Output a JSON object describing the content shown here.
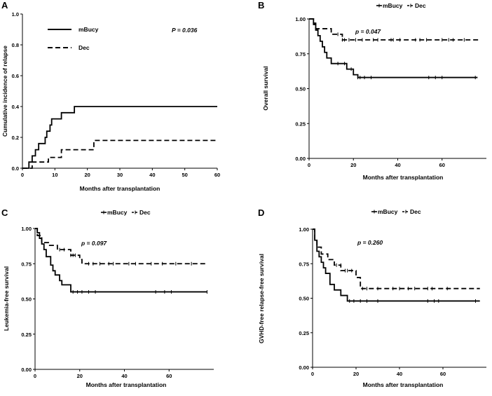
{
  "chart_data": [
    {
      "type": "line",
      "panel": "A",
      "annotation": "P = 0.036",
      "xlabel": "Months after transplantation",
      "ylabel": "Cumulative incidence of relapse",
      "xlim": [
        0,
        60
      ],
      "ylim": [
        0,
        1.0
      ],
      "xticks": [
        "0",
        "10",
        "20",
        "30",
        "40",
        "50",
        "60"
      ],
      "yticks": [
        "0.0",
        "0.2",
        "0.4",
        "0.6",
        "0.8",
        "1.0"
      ],
      "legend_placement": "top-left",
      "series": [
        {
          "name": "mBucy",
          "dash": "solid",
          "censors": [],
          "steps": [
            [
              0,
              0
            ],
            [
              2,
              0.04
            ],
            [
              3,
              0.08
            ],
            [
              4,
              0.12
            ],
            [
              5,
              0.16
            ],
            [
              7,
              0.2
            ],
            [
              7.5,
              0.24
            ],
            [
              8.5,
              0.28
            ],
            [
              9,
              0.32
            ],
            [
              12,
              0.36
            ],
            [
              16,
              0.4
            ],
            [
              60,
              0.4
            ]
          ]
        },
        {
          "name": "Dec",
          "dash": "dashed",
          "censors": [],
          "steps": [
            [
              0,
              0
            ],
            [
              3,
              0.04
            ],
            [
              8,
              0.07
            ],
            [
              12,
              0.12
            ],
            [
              22,
              0.18
            ],
            [
              60,
              0.18
            ]
          ]
        }
      ]
    },
    {
      "type": "line",
      "panel": "B",
      "annotation": "p = 0.047",
      "xlabel": "Months after transplantation",
      "ylabel": "Overall survival",
      "xlim": [
        0,
        80
      ],
      "ylim": [
        0,
        1.0
      ],
      "xticks": [
        "0",
        "20",
        "40",
        "60"
      ],
      "yticks": [
        "0.00",
        "0.25",
        "0.50",
        "0.75",
        "1.00"
      ],
      "legend_placement": "top",
      "legend_items": [
        "mBucy",
        "Dec"
      ],
      "series": [
        {
          "name": "mBucy",
          "dash": "solid",
          "steps": [
            [
              0,
              1.0
            ],
            [
              2,
              0.96
            ],
            [
              3,
              0.92
            ],
            [
              4,
              0.88
            ],
            [
              5,
              0.84
            ],
            [
              6,
              0.8
            ],
            [
              7,
              0.76
            ],
            [
              8,
              0.72
            ],
            [
              10,
              0.68
            ],
            [
              17,
              0.64
            ],
            [
              20,
              0.6
            ],
            [
              22,
              0.58
            ],
            [
              76,
              0.58
            ]
          ],
          "censors": [
            [
              13,
              0.68
            ],
            [
              16,
              0.68
            ],
            [
              19,
              0.64
            ],
            [
              22,
              0.58
            ],
            [
              23,
              0.58
            ],
            [
              25,
              0.58
            ],
            [
              28,
              0.58
            ],
            [
              54,
              0.58
            ],
            [
              57,
              0.58
            ],
            [
              60,
              0.58
            ],
            [
              75,
              0.58
            ]
          ]
        },
        {
          "name": "Dec",
          "dash": "dashed",
          "steps": [
            [
              0,
              1.0
            ],
            [
              2,
              0.97
            ],
            [
              3,
              0.93
            ],
            [
              10,
              0.89
            ],
            [
              15,
              0.85
            ],
            [
              77,
              0.85
            ]
          ],
          "censors": [
            [
              13,
              0.89
            ],
            [
              15,
              0.85
            ],
            [
              16,
              0.85
            ],
            [
              18,
              0.85
            ],
            [
              21,
              0.85
            ],
            [
              24,
              0.85
            ],
            [
              29,
              0.85
            ],
            [
              31,
              0.85
            ],
            [
              37,
              0.85
            ],
            [
              38,
              0.85
            ],
            [
              41,
              0.85
            ],
            [
              48,
              0.85
            ],
            [
              50,
              0.85
            ],
            [
              53,
              0.85
            ],
            [
              60,
              0.85
            ],
            [
              63,
              0.85
            ],
            [
              65,
              0.85
            ],
            [
              70,
              0.85
            ]
          ]
        }
      ]
    },
    {
      "type": "line",
      "panel": "C",
      "annotation": "p = 0.097",
      "xlabel": "Months after transplantation",
      "ylabel": "Leukemia-free survival",
      "xlim": [
        0,
        80
      ],
      "ylim": [
        0,
        1.0
      ],
      "xticks": [
        "0",
        "20",
        "40",
        "60"
      ],
      "yticks": [
        "0.00",
        "0.25",
        "0.50",
        "0.75",
        "1.00"
      ],
      "legend_placement": "top",
      "legend_items": [
        "mBucy",
        "Dec"
      ],
      "series": [
        {
          "name": "mBucy",
          "dash": "solid",
          "steps": [
            [
              0,
              1.0
            ],
            [
              1,
              0.97
            ],
            [
              2,
              0.93
            ],
            [
              3,
              0.89
            ],
            [
              4,
              0.85
            ],
            [
              5,
              0.8
            ],
            [
              7,
              0.74
            ],
            [
              8,
              0.7
            ],
            [
              9,
              0.67
            ],
            [
              11,
              0.63
            ],
            [
              12,
              0.6
            ],
            [
              16,
              0.55
            ],
            [
              77,
              0.55
            ]
          ],
          "censors": [
            [
              17,
              0.55
            ],
            [
              19,
              0.55
            ],
            [
              21,
              0.55
            ],
            [
              24,
              0.55
            ],
            [
              27,
              0.55
            ],
            [
              54,
              0.55
            ],
            [
              58,
              0.55
            ],
            [
              61,
              0.55
            ],
            [
              77,
              0.55
            ]
          ]
        },
        {
          "name": "Dec",
          "dash": "dashed",
          "steps": [
            [
              0,
              1.0
            ],
            [
              1,
              0.95
            ],
            [
              3,
              0.9
            ],
            [
              6,
              0.88
            ],
            [
              10,
              0.85
            ],
            [
              16,
              0.81
            ],
            [
              20,
              0.78
            ],
            [
              21,
              0.75
            ],
            [
              77,
              0.75
            ]
          ],
          "censors": [
            [
              11,
              0.85
            ],
            [
              13,
              0.85
            ],
            [
              16,
              0.81
            ],
            [
              17,
              0.81
            ],
            [
              18,
              0.81
            ],
            [
              24,
              0.75
            ],
            [
              26,
              0.75
            ],
            [
              29,
              0.75
            ],
            [
              33,
              0.75
            ],
            [
              35,
              0.75
            ],
            [
              42,
              0.75
            ],
            [
              45,
              0.75
            ],
            [
              52,
              0.75
            ],
            [
              57,
              0.75
            ],
            [
              63,
              0.75
            ],
            [
              70,
              0.75
            ]
          ]
        }
      ]
    },
    {
      "type": "line",
      "panel": "D",
      "annotation": "p = 0.260",
      "xlabel": "Months after transplantation",
      "ylabel": "GVHD-free relapse-free survival",
      "xlim": [
        0,
        80
      ],
      "ylim": [
        0,
        1.0
      ],
      "xticks": [
        "0",
        "20",
        "40",
        "60"
      ],
      "yticks": [
        "0.00",
        "0.25",
        "0.50",
        "0.75",
        "1.00"
      ],
      "legend_placement": "top",
      "legend_items": [
        "mBucy",
        "Dec"
      ],
      "series": [
        {
          "name": "mBucy",
          "dash": "solid",
          "steps": [
            [
              0,
              1.0
            ],
            [
              1,
              0.92
            ],
            [
              2,
              0.84
            ],
            [
              3,
              0.8
            ],
            [
              4,
              0.76
            ],
            [
              5,
              0.72
            ],
            [
              6,
              0.68
            ],
            [
              8,
              0.6
            ],
            [
              10,
              0.56
            ],
            [
              13,
              0.52
            ],
            [
              16,
              0.48
            ],
            [
              77,
              0.48
            ]
          ],
          "censors": [
            [
              17,
              0.48
            ],
            [
              19,
              0.48
            ],
            [
              22,
              0.48
            ],
            [
              25,
              0.48
            ],
            [
              30,
              0.48
            ],
            [
              53,
              0.48
            ],
            [
              56,
              0.48
            ],
            [
              58,
              0.48
            ],
            [
              75,
              0.48
            ]
          ]
        },
        {
          "name": "Dec",
          "dash": "dashed",
          "steps": [
            [
              0,
              1.0
            ],
            [
              1,
              0.92
            ],
            [
              2,
              0.87
            ],
            [
              4,
              0.82
            ],
            [
              7,
              0.78
            ],
            [
              10,
              0.74
            ],
            [
              13,
              0.7
            ],
            [
              20,
              0.65
            ],
            [
              22,
              0.57
            ],
            [
              77,
              0.57
            ]
          ],
          "censors": [
            [
              11,
              0.74
            ],
            [
              13,
              0.74
            ],
            [
              15,
              0.7
            ],
            [
              16,
              0.7
            ],
            [
              18,
              0.7
            ],
            [
              23,
              0.57
            ],
            [
              25,
              0.57
            ],
            [
              30,
              0.57
            ],
            [
              37,
              0.57
            ],
            [
              40,
              0.57
            ],
            [
              44,
              0.57
            ],
            [
              47,
              0.57
            ],
            [
              53,
              0.57
            ],
            [
              55,
              0.57
            ],
            [
              62,
              0.57
            ]
          ]
        }
      ]
    }
  ]
}
